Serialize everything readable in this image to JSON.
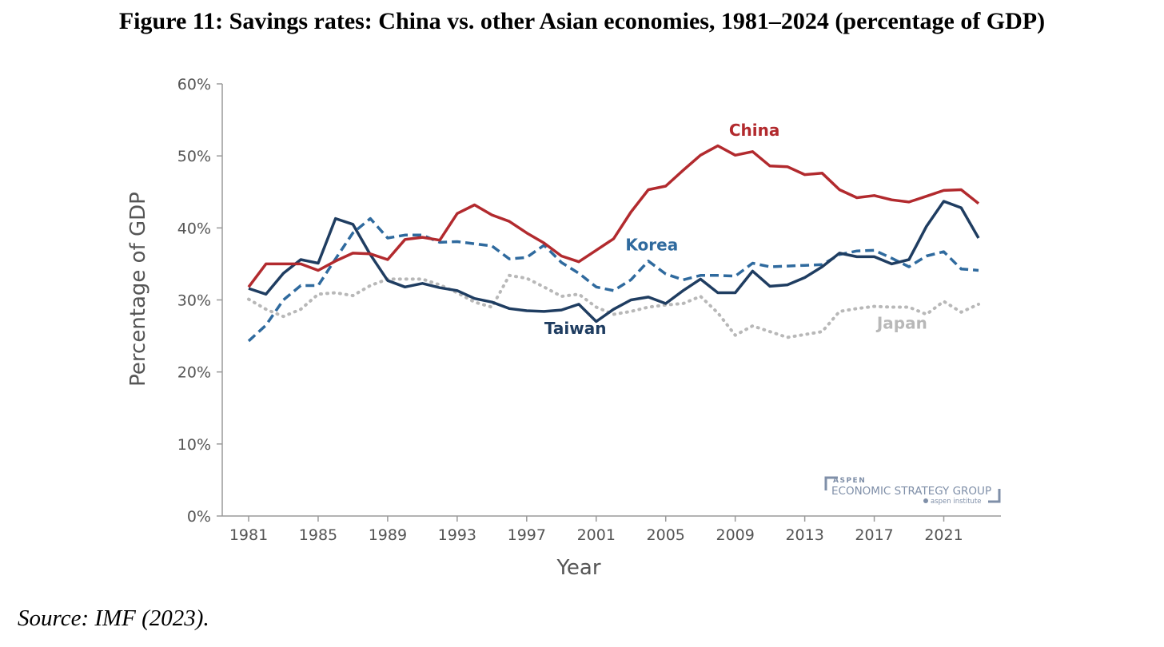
{
  "figure": {
    "title": "Figure 11: Savings rates: China vs. other Asian economies, 1981–2024 (percentage of GDP)",
    "source": "Source: IMF (2023)."
  },
  "logo": {
    "line1": "ASPEN",
    "line2": "ECONOMIC STRATEGY GROUP",
    "line3": "aspen institute"
  },
  "chart_data": {
    "type": "line",
    "title": "",
    "xlabel": "Year",
    "ylabel": "Percentage of GDP",
    "xlim": [
      1981,
      2023
    ],
    "ylim": [
      0,
      60
    ],
    "x_ticks": [
      1981,
      1985,
      1989,
      1993,
      1997,
      2001,
      2005,
      2009,
      2013,
      2017,
      2021
    ],
    "y_ticks": [
      0,
      10,
      20,
      30,
      40,
      50,
      60
    ],
    "y_tick_labels": [
      "0%",
      "10%",
      "20%",
      "30%",
      "40%",
      "50%",
      "60%"
    ],
    "grid": false,
    "legend": "inline labels",
    "x": [
      1981,
      1982,
      1983,
      1984,
      1985,
      1986,
      1987,
      1988,
      1989,
      1990,
      1991,
      1992,
      1993,
      1994,
      1995,
      1996,
      1997,
      1998,
      1999,
      2000,
      2001,
      2002,
      2003,
      2004,
      2005,
      2006,
      2007,
      2008,
      2009,
      2010,
      2011,
      2012,
      2013,
      2014,
      2015,
      2016,
      2017,
      2018,
      2019,
      2020,
      2021,
      2022,
      2023
    ],
    "series": [
      {
        "name": "China",
        "color": "#b22a2e",
        "style": "solid",
        "values": [
          31.8,
          35.0,
          35.0,
          35.0,
          34.1,
          35.4,
          36.5,
          36.4,
          35.6,
          38.4,
          38.7,
          38.3,
          42.0,
          43.2,
          41.8,
          40.9,
          39.3,
          37.9,
          36.1,
          35.3,
          36.9,
          38.5,
          42.2,
          45.3,
          45.8,
          48.0,
          50.1,
          51.4,
          50.1,
          50.6,
          48.6,
          48.5,
          47.4,
          47.6,
          45.3,
          44.2,
          44.5,
          43.9,
          43.6,
          44.4,
          45.2,
          45.3,
          43.4
        ]
      },
      {
        "name": "Korea",
        "color": "#2f6a9e",
        "style": "dashed",
        "values": [
          24.3,
          26.5,
          30.0,
          32.0,
          32.0,
          35.7,
          39.3,
          41.3,
          38.6,
          39.0,
          39.0,
          38.0,
          38.1,
          37.8,
          37.5,
          35.7,
          35.9,
          37.6,
          35.2,
          33.7,
          31.8,
          31.3,
          32.8,
          35.4,
          33.6,
          32.8,
          33.4,
          33.4,
          33.3,
          35.1,
          34.6,
          34.7,
          34.8,
          34.9,
          36.3,
          36.8,
          36.9,
          35.8,
          34.6,
          36.1,
          36.7,
          34.3,
          34.1
        ]
      },
      {
        "name": "Taiwan",
        "color": "#1f3d61",
        "style": "solid",
        "values": [
          31.6,
          30.8,
          33.7,
          35.6,
          35.1,
          41.3,
          40.5,
          36.3,
          32.7,
          31.8,
          32.3,
          31.7,
          31.3,
          30.2,
          29.7,
          28.8,
          28.5,
          28.4,
          28.6,
          29.4,
          27.0,
          28.7,
          30.0,
          30.4,
          29.5,
          31.3,
          32.9,
          31.0,
          31.0,
          34.0,
          31.9,
          32.1,
          33.1,
          34.6,
          36.5,
          36.0,
          36.0,
          35.0,
          35.6,
          40.2,
          43.7,
          42.8,
          38.6
        ]
      },
      {
        "name": "Japan",
        "color": "#b8b8b8",
        "style": "dotted",
        "values": [
          30.1,
          28.7,
          27.7,
          28.7,
          30.8,
          31.0,
          30.6,
          32.0,
          32.9,
          32.9,
          32.9,
          32.1,
          31.0,
          29.7,
          29.0,
          33.4,
          33.0,
          31.8,
          30.5,
          30.8,
          29.0,
          28.0,
          28.4,
          29.0,
          29.3,
          29.5,
          30.5,
          28.2,
          25.1,
          26.4,
          25.6,
          24.8,
          25.2,
          25.6,
          28.4,
          28.8,
          29.1,
          29.0,
          29.0,
          28.0,
          29.8,
          28.3,
          29.4
        ]
      }
    ]
  }
}
